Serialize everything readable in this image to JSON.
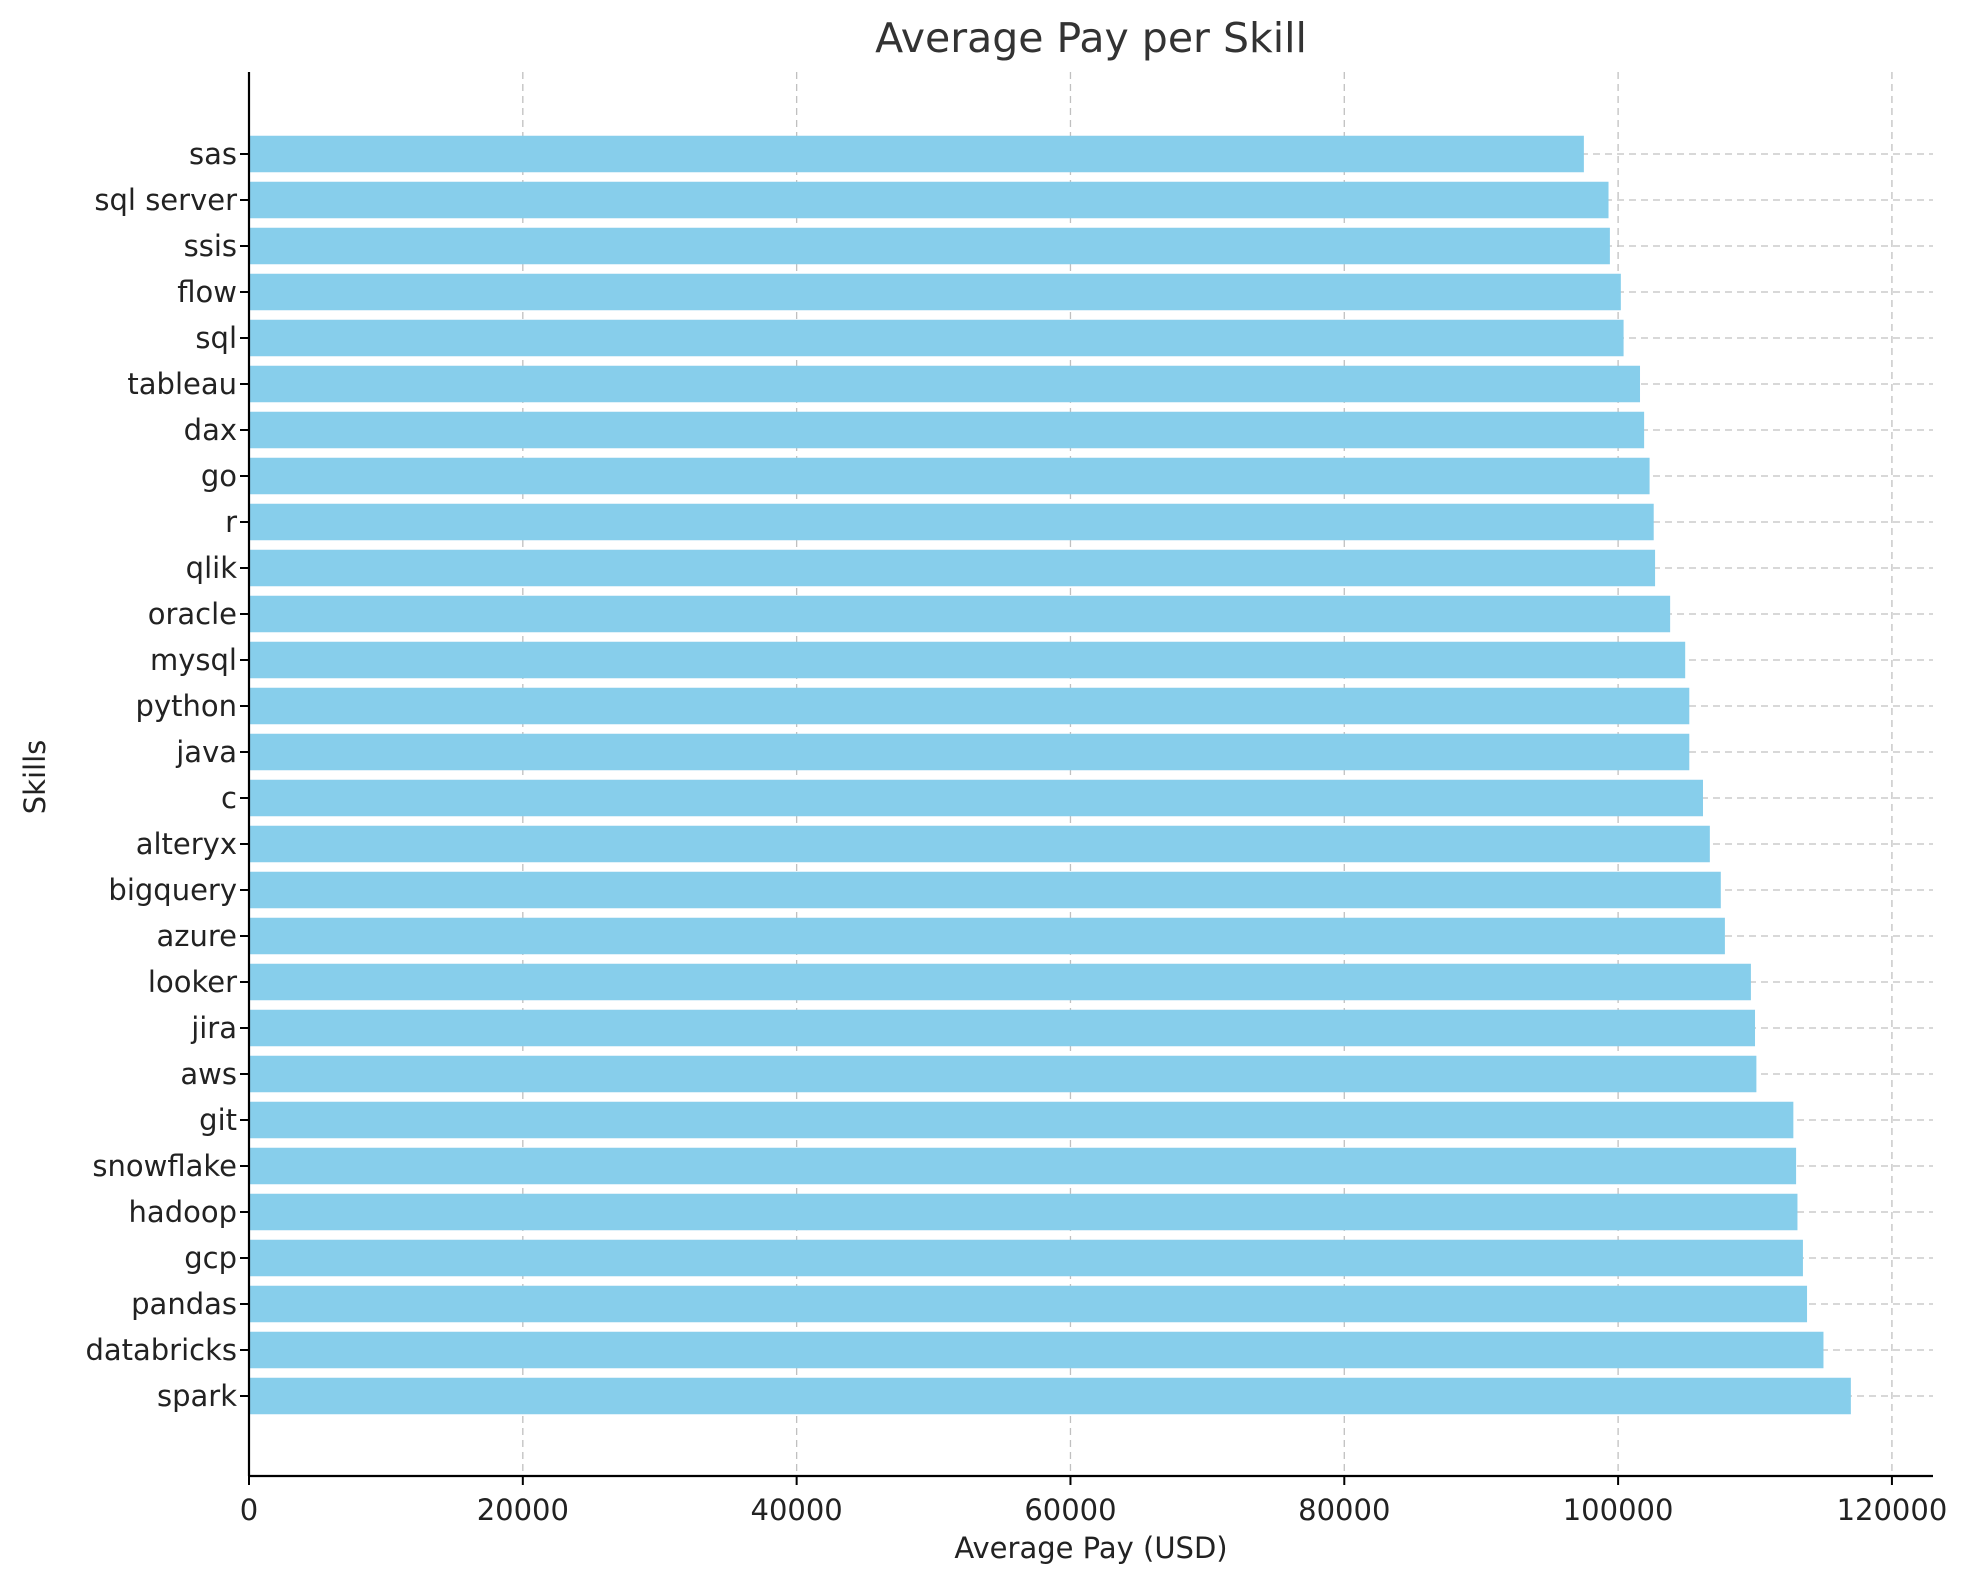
{
  "chart_data": {
    "type": "bar",
    "orientation": "horizontal",
    "title": "Average Pay per Skill",
    "xlabel": "Average Pay (USD)",
    "ylabel": "Skills",
    "xlim": [
      0,
      123000
    ],
    "xticks": [
      0,
      20000,
      40000,
      60000,
      80000,
      100000,
      120000
    ],
    "grid": true,
    "bar_color": "#87ceeb",
    "categories": [
      "sas",
      "sql server",
      "ssis",
      "flow",
      "sql",
      "tableau",
      "dax",
      "go",
      "r",
      "qlik",
      "oracle",
      "mysql",
      "python",
      "java",
      "c",
      "alteryx",
      "bigquery",
      "azure",
      "looker",
      "jira",
      "aws",
      "git",
      "snowflake",
      "hadoop",
      "gcp",
      "pandas",
      "databricks",
      "spark"
    ],
    "values": [
      97500,
      99300,
      99400,
      100200,
      100400,
      101600,
      101900,
      102300,
      102600,
      102700,
      103800,
      104900,
      105200,
      105200,
      106200,
      106700,
      107500,
      107800,
      109700,
      110000,
      110100,
      112800,
      113000,
      113100,
      113500,
      113800,
      115000,
      117000
    ]
  }
}
